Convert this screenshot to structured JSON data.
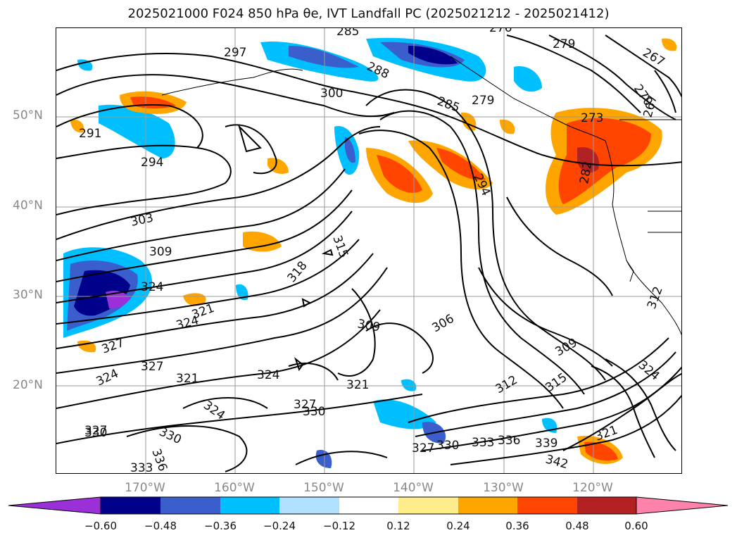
{
  "title": "2025021000 F024 850 hPa θe, IVT Landfall PC (2025021212 - 2025021412)",
  "lat_labels": [
    "50°N",
    "40°N",
    "30°N",
    "20°N"
  ],
  "lon_labels": [
    "170°W",
    "160°W",
    "150°W",
    "140°W",
    "130°W",
    "120°W"
  ],
  "colorbar": {
    "ticks": [
      "−0.60",
      "−0.48",
      "−0.36",
      "−0.24",
      "−0.12",
      "0.12",
      "0.24",
      "0.36",
      "0.48",
      "0.60"
    ],
    "colors": [
      "#9b30d9",
      "#00008b",
      "#3a5fcd",
      "#00bfff",
      "#b0e2ff",
      "#ffffff",
      "#ffec8b",
      "#ffa500",
      "#ff4500",
      "#b22222",
      "#ff82ab"
    ]
  },
  "contour_labels": [
    "285",
    "297",
    "288",
    "300",
    "285",
    "279",
    "276",
    "279",
    "267",
    "270",
    "267",
    "273",
    "291",
    "294",
    "282",
    "294",
    "303",
    "309",
    "315",
    "318",
    "324",
    "321",
    "324",
    "327",
    "327",
    "324",
    "321",
    "324",
    "327",
    "330",
    "321",
    "309",
    "306",
    "309",
    "312",
    "315",
    "324",
    "321",
    "324",
    "327",
    "330",
    "333",
    "336",
    "339",
    "342",
    "327",
    "330",
    "333",
    "336",
    "330",
    "312"
  ]
}
